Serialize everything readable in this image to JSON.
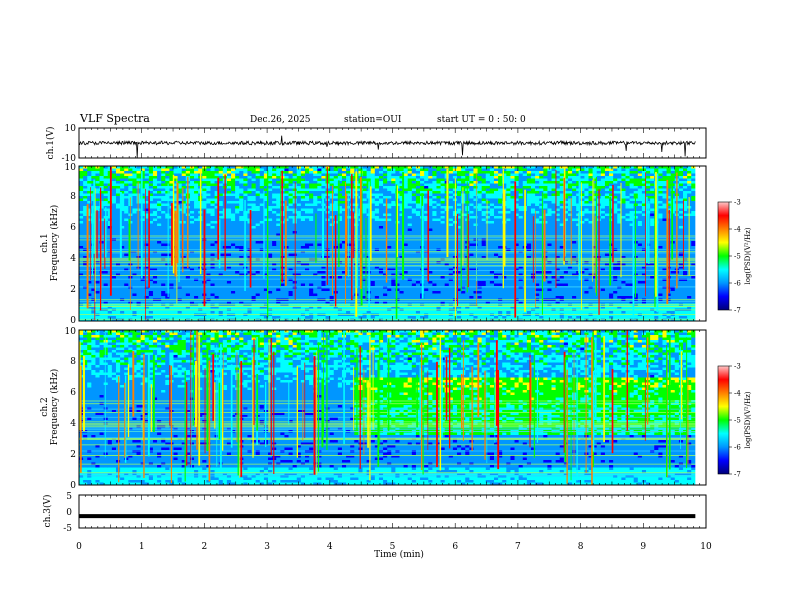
{
  "chart_data": {
    "type": "heatmap",
    "title": "VLF Spectra",
    "date": "Dec.26, 2025",
    "station": "station=OUI",
    "start_ut": "start UT =  0 : 50: 0",
    "xlabel": "Time (min)",
    "x_ticks": [
      "0",
      "1",
      "2",
      "3",
      "4",
      "5",
      "6",
      "7",
      "8",
      "9",
      "10"
    ],
    "xlim": [
      0,
      10
    ],
    "data_end_min": 9.83,
    "panels": [
      {
        "id": "ch1-waveform",
        "type": "line",
        "ylabel": "ch.1(V)",
        "ylim": [
          -10,
          10
        ],
        "y_ticks": [
          "10",
          "-10"
        ],
        "baseline": 0
      },
      {
        "id": "ch1-spectrogram",
        "type": "heatmap",
        "ylabel_line1": "ch.1",
        "ylabel_line2": "Frequency (kHz)",
        "ylim": [
          0,
          10
        ],
        "y_ticks": [
          "0",
          "2",
          "4",
          "6",
          "8",
          "10"
        ],
        "colorbar_label": "log(PSD)(V²/Hz)",
        "colorbar_ticks": [
          "-3",
          "-4",
          "-5",
          "-6",
          "-7"
        ],
        "clim": [
          -7,
          -3
        ]
      },
      {
        "id": "ch2-spectrogram",
        "type": "heatmap",
        "ylabel_line1": "ch.2",
        "ylabel_line2": "Frequency (kHz)",
        "ylim": [
          0,
          10
        ],
        "y_ticks": [
          "0",
          "2",
          "4",
          "6",
          "8",
          "10"
        ],
        "colorbar_label": "log(PSD)(V²/Hz)",
        "colorbar_ticks": [
          "-3",
          "-4",
          "-5",
          "-6",
          "-7"
        ],
        "clim": [
          -7,
          -3
        ],
        "enhanced_band_after_min": 4.4,
        "enhanced_band_khz": [
          3.3,
          7.0
        ]
      },
      {
        "id": "ch3-waveform",
        "type": "line",
        "ylabel": "ch.3(V)",
        "ylim": [
          -5,
          5
        ],
        "y_ticks": [
          "5",
          "0",
          "-5"
        ],
        "baseline": -1.4
      }
    ],
    "colors": {
      "waveform": "#000000",
      "colormap": [
        "#000078",
        "#0000ff",
        "#0096ff",
        "#00ffff",
        "#00ff00",
        "#ffff00",
        "#ff8000",
        "#ff0000",
        "#ffc8c8"
      ]
    }
  }
}
